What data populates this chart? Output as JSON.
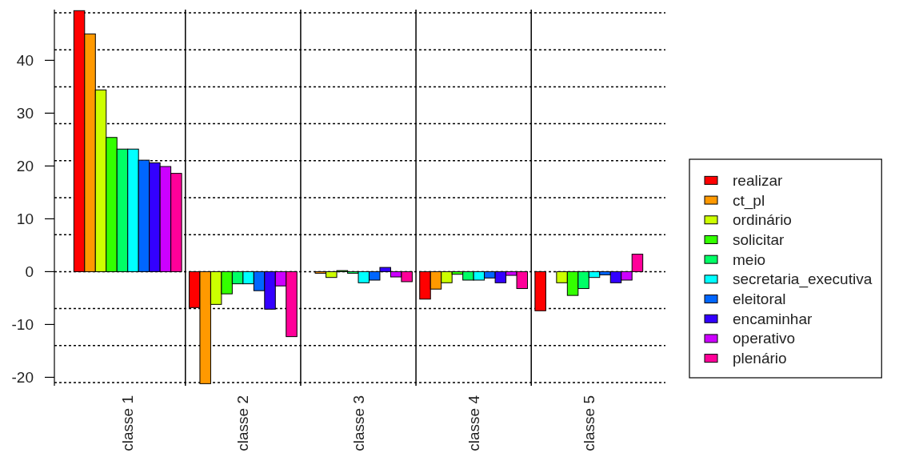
{
  "chart_data": {
    "type": "bar",
    "categories": [
      "classe 1",
      "classe 2",
      "classe 3",
      "classe 4",
      "classe 5"
    ],
    "series": [
      {
        "name": "realizar",
        "color": "#ff0000",
        "values": [
          49.4,
          -6.8,
          0,
          -5.2,
          -7.4
        ]
      },
      {
        "name": "ct_pl",
        "color": "#ff9900",
        "values": [
          45.0,
          -21.2,
          -0.3,
          -3.3,
          0
        ]
      },
      {
        "name": "ordinário",
        "color": "#ccff00",
        "values": [
          34.4,
          -6.2,
          -1.1,
          -2.1,
          -2.1
        ]
      },
      {
        "name": "solicitar",
        "color": "#33ff00",
        "values": [
          25.4,
          -4.2,
          0.2,
          -0.5,
          -4.5
        ]
      },
      {
        "name": "meio",
        "color": "#00ff66",
        "values": [
          23.2,
          -2.3,
          -0.3,
          -1.6,
          -3.2
        ]
      },
      {
        "name": "secretaria_executiva",
        "color": "#00ffff",
        "values": [
          23.2,
          -2.3,
          -2.1,
          -1.6,
          -1.1
        ]
      },
      {
        "name": "eleitoral",
        "color": "#0066ff",
        "values": [
          21.1,
          -3.6,
          -1.6,
          -1.2,
          -0.6
        ]
      },
      {
        "name": "encaminhar",
        "color": "#3300ff",
        "values": [
          20.6,
          -7.1,
          0.8,
          -2.1,
          -2.1
        ]
      },
      {
        "name": "operativo",
        "color": "#cc00ff",
        "values": [
          19.9,
          -2.7,
          -1.0,
          -0.7,
          -1.6
        ]
      },
      {
        "name": "plenário",
        "color": "#ff0099",
        "values": [
          18.6,
          -12.3,
          -1.9,
          -3.2,
          3.3
        ]
      }
    ],
    "ylim": [
      -21.6,
      49.6
    ],
    "yticks": [
      -20,
      -10,
      0,
      10,
      20,
      30,
      40
    ],
    "legend": "bottom right",
    "ref_lines": [
      {
        "axis": "y",
        "value": -21,
        "line_style": "dotted"
      },
      {
        "axis": "y",
        "value": -14,
        "line_style": "dotted"
      },
      {
        "axis": "y",
        "value": -7,
        "line_style": "dotted"
      },
      {
        "axis": "y",
        "value": 0,
        "line_style": "dotted"
      },
      {
        "axis": "y",
        "value": 7,
        "line_style": "dotted"
      },
      {
        "axis": "y",
        "value": 14,
        "line_style": "dotted"
      },
      {
        "axis": "y",
        "value": 21,
        "line_style": "dotted"
      },
      {
        "axis": "y",
        "value": 28,
        "line_style": "dotted"
      },
      {
        "axis": "y",
        "value": 35,
        "line_style": "dotted"
      },
      {
        "axis": "y",
        "value": 42,
        "line_style": "dotted"
      },
      {
        "axis": "y",
        "value": 49,
        "line_style": "dotted"
      }
    ]
  }
}
